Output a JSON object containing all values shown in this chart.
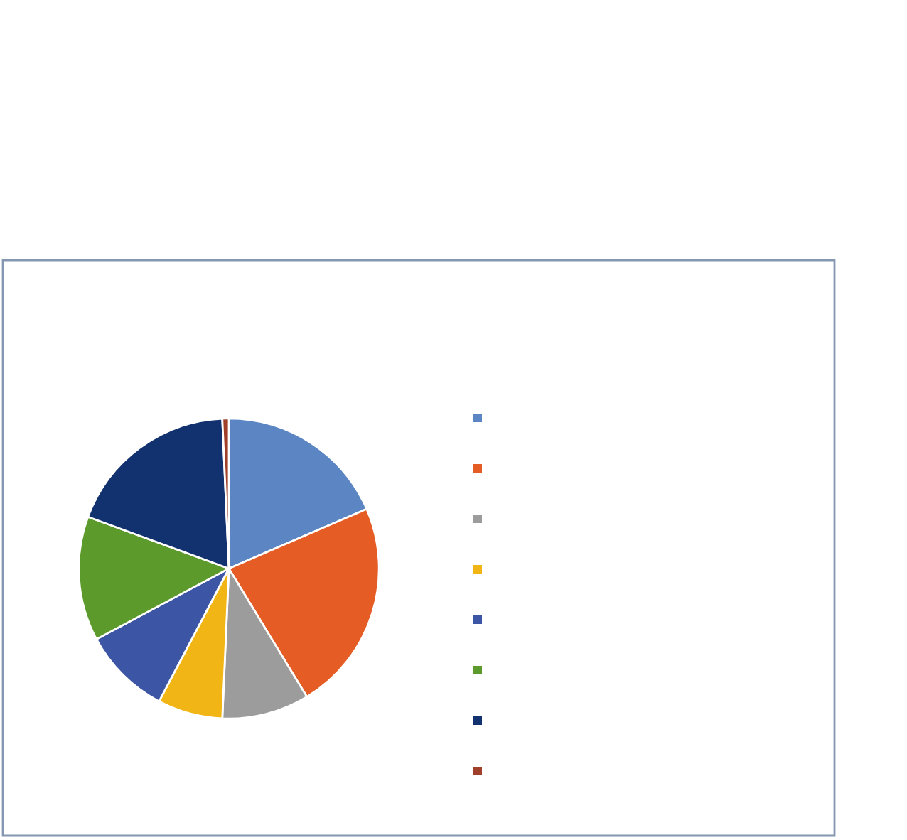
{
  "chart_data": {
    "type": "pie",
    "categories": [
      null,
      null,
      null,
      null,
      null,
      null,
      null,
      null
    ],
    "values": [
      18.5,
      22.8,
      9.4,
      7.0,
      9.5,
      13.4,
      18.7,
      0.7
    ],
    "colors": [
      "#5b86c3",
      "#e55d25",
      "#9c9c9c",
      "#f1b515",
      "#3c55a5",
      "#5d9a2c",
      "#12316f",
      "#a0402a"
    ]
  }
}
